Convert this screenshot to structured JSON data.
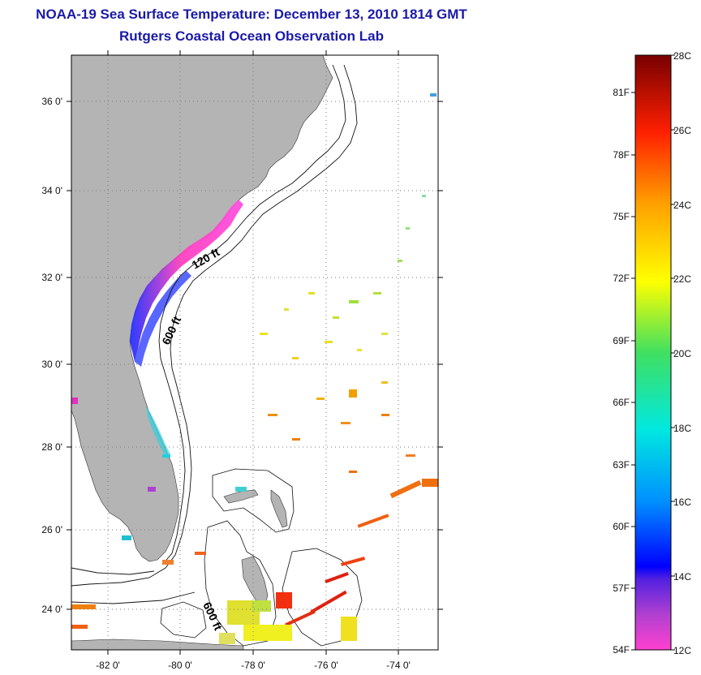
{
  "title": "NOAA-19 Sea Surface Temperature:  December 13, 2010 1814 GMT",
  "subtitle": "Rutgers Coastal Ocean Observation Lab",
  "map": {
    "lat_labels": [
      "36 0'",
      "34 0'",
      "32 0'",
      "30 0'",
      "28 0'",
      "26 0'",
      "24 0'"
    ],
    "lon_labels": [
      "-82 0'",
      "-80 0'",
      "-78 0'",
      "-76 0'",
      "-74 0'"
    ],
    "contour_labels": [
      "120 ft",
      "600 ft",
      "600 ft"
    ],
    "land_color": "#b4b4b4"
  },
  "colorbar": {
    "celsius_labels": [
      "28C",
      "26C",
      "24C",
      "22C",
      "20C",
      "18C",
      "16C",
      "14C",
      "12C"
    ],
    "fahrenheit_labels": [
      "81F",
      "78F",
      "75F",
      "72F",
      "69F",
      "66F",
      "63F",
      "60F",
      "57F",
      "54F"
    ],
    "range_c": [
      12,
      28
    ]
  }
}
